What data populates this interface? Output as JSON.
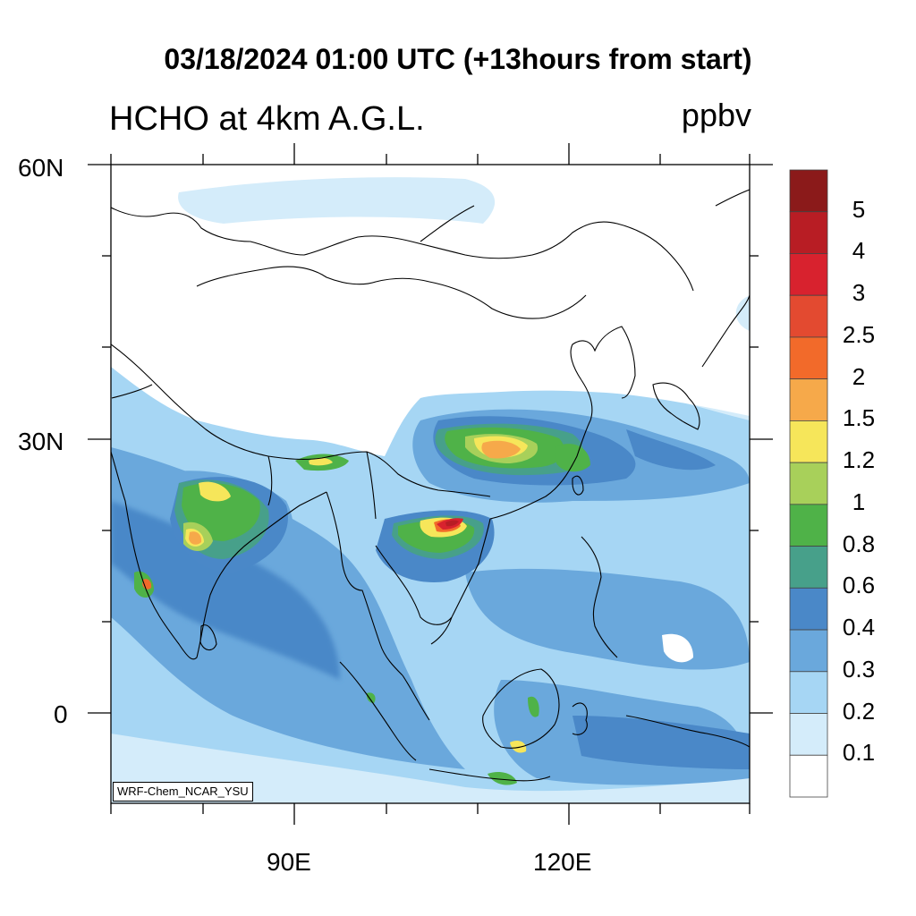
{
  "header": {
    "title": "03/18/2024 01:00 UTC (+13hours from start)",
    "left_subtitle": "HCHO at 4km A.G.L.",
    "right_subtitle": "ppbv"
  },
  "axes": {
    "lat_ticks": [
      "60N",
      "30N",
      "0"
    ],
    "lon_ticks": [
      "90E",
      "120E"
    ]
  },
  "colorbar": {
    "labels": [
      "5",
      "4",
      "3",
      "2.5",
      "2",
      "1.5",
      "1.2",
      "1",
      "0.8",
      "0.6",
      "0.4",
      "0.3",
      "0.2",
      "0.1"
    ],
    "colors": [
      "#8b1a1a",
      "#b81d24",
      "#d8222e",
      "#e34a30",
      "#f26a2a",
      "#f6a94a",
      "#f6e65a",
      "#a8d05a",
      "#4fb248",
      "#47a08a",
      "#4a88c8",
      "#6aa8dc",
      "#a6d6f4",
      "#d4ecfa",
      "#ffffff"
    ]
  },
  "credit": "WRF-Chem_NCAR_YSU",
  "map": {
    "projection": "lat-lon",
    "lon_range": [
      70,
      140
    ],
    "lat_range": [
      -10,
      60
    ],
    "variable": "HCHO",
    "units": "ppbv"
  }
}
